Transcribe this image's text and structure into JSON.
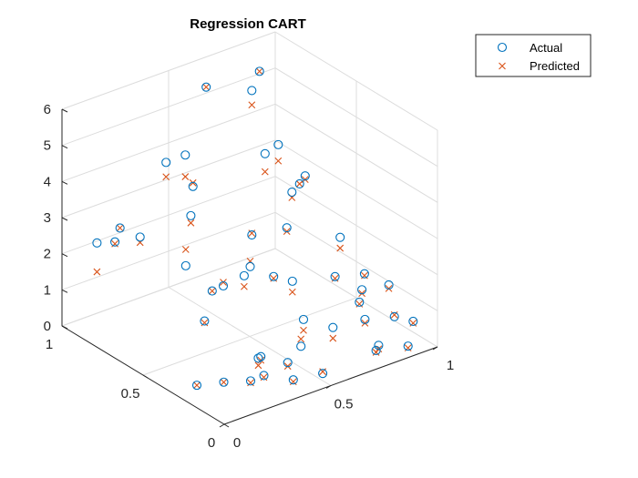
{
  "chart_data": {
    "type": "scatter",
    "title": "Regression CART",
    "projection": "3d",
    "grid": true,
    "legend_position": "top-right",
    "axes": {
      "x": {
        "ticks": [
          0,
          0.5,
          1
        ],
        "labels": [
          "0",
          "0.5",
          "1"
        ],
        "range": [
          0,
          1
        ]
      },
      "y": {
        "ticks": [
          0,
          0.5,
          1
        ],
        "labels": [
          "0",
          "0.5",
          "1"
        ],
        "range": [
          0,
          1
        ]
      },
      "z": {
        "ticks": [
          0,
          1,
          2,
          3,
          4,
          5,
          6
        ],
        "labels": [
          "0",
          "1",
          "2",
          "3",
          "4",
          "5",
          "6"
        ],
        "range": [
          0,
          6
        ]
      }
    },
    "series": [
      {
        "name": "Actual",
        "marker": "circle",
        "color": "#0072BD",
        "points": [
          {
            "x": 0.05,
            "y": 0.85,
            "z": 2.6
          },
          {
            "x": 0.02,
            "y": 0.7,
            "z": 3.1
          },
          {
            "x": 0.1,
            "y": 0.65,
            "z": 3.2
          },
          {
            "x": 0.12,
            "y": 0.8,
            "z": 3.0
          },
          {
            "x": 0.2,
            "y": 0.5,
            "z": 2.6
          },
          {
            "x": 0.35,
            "y": 0.7,
            "z": 4.8
          },
          {
            "x": 0.3,
            "y": 0.6,
            "z": 3.5
          },
          {
            "x": 0.45,
            "y": 0.95,
            "z": 3.7
          },
          {
            "x": 0.5,
            "y": 0.85,
            "z": 3.2
          },
          {
            "x": 0.6,
            "y": 0.9,
            "z": 5.6
          },
          {
            "x": 0.7,
            "y": 0.75,
            "z": 5.7
          },
          {
            "x": 0.85,
            "y": 0.9,
            "z": 5.5
          },
          {
            "x": 0.3,
            "y": 0.4,
            "z": 2.1
          },
          {
            "x": 0.35,
            "y": 0.3,
            "z": 2.8
          },
          {
            "x": 0.4,
            "y": 0.6,
            "z": 1.2
          },
          {
            "x": 0.1,
            "y": 0.3,
            "z": 0.05
          },
          {
            "x": 0.15,
            "y": 0.2,
            "z": 0.3
          },
          {
            "x": 0.2,
            "y": 0.1,
            "z": 0.5
          },
          {
            "x": 0.3,
            "y": 0.15,
            "z": 0.3
          },
          {
            "x": 0.35,
            "y": 0.25,
            "z": 0.4
          },
          {
            "x": 0.4,
            "y": 0.3,
            "z": 0.2
          },
          {
            "x": 0.4,
            "y": 0.1,
            "z": 0.1
          },
          {
            "x": 0.45,
            "y": 0.2,
            "z": 0.2
          },
          {
            "x": 0.5,
            "y": 0.05,
            "z": 0.2
          },
          {
            "x": 0.55,
            "y": 0.25,
            "z": 0.3
          },
          {
            "x": 0.25,
            "y": 0.45,
            "z": 1.1
          },
          {
            "x": 0.55,
            "y": 0.6,
            "z": 1.3
          },
          {
            "x": 0.65,
            "y": 0.55,
            "z": 1.2
          },
          {
            "x": 0.7,
            "y": 0.5,
            "z": 1.1
          },
          {
            "x": 0.6,
            "y": 0.3,
            "z": 0.8
          },
          {
            "x": 0.7,
            "y": 0.25,
            "z": 0.5
          },
          {
            "x": 0.75,
            "y": 0.05,
            "z": 0.3
          },
          {
            "x": 0.7,
            "y": 0.75,
            "z": 1.7
          },
          {
            "x": 0.75,
            "y": 0.6,
            "z": 2.2
          },
          {
            "x": 0.8,
            "y": 0.8,
            "z": 3.6
          },
          {
            "x": 0.85,
            "y": 0.7,
            "z": 2.7
          },
          {
            "x": 0.9,
            "y": 0.85,
            "z": 3.5
          },
          {
            "x": 0.95,
            "y": 0.75,
            "z": 2.8
          },
          {
            "x": 0.9,
            "y": 0.5,
            "z": 0.8
          },
          {
            "x": 0.85,
            "y": 0.25,
            "z": 0.4
          },
          {
            "x": 0.8,
            "y": 0.1,
            "z": 0.2
          },
          {
            "x": 0.9,
            "y": 0.05,
            "z": 0.1
          },
          {
            "x": 0.95,
            "y": 0.2,
            "z": 0.4
          },
          {
            "x": 1.0,
            "y": 0.3,
            "z": 0.9
          },
          {
            "x": 0.95,
            "y": 0.4,
            "z": 0.6
          },
          {
            "x": 1.0,
            "y": 0.15,
            "z": 0.3
          },
          {
            "x": 0.9,
            "y": 0.35,
            "z": 0.5
          },
          {
            "x": 1.0,
            "y": 0.6,
            "z": 1.4
          },
          {
            "x": 1.0,
            "y": 0.45,
            "z": 0.8
          },
          {
            "x": 1.0,
            "y": 0.85,
            "z": 2.2
          }
        ]
      },
      {
        "name": "Predicted",
        "marker": "x",
        "color": "#D95319",
        "points": [
          {
            "x": 0.05,
            "y": 0.85,
            "z": 1.8
          },
          {
            "x": 0.02,
            "y": 0.7,
            "z": 3.05
          },
          {
            "x": 0.1,
            "y": 0.65,
            "z": 3.05
          },
          {
            "x": 0.12,
            "y": 0.8,
            "z": 3.0
          },
          {
            "x": 0.2,
            "y": 0.5,
            "z": 3.05
          },
          {
            "x": 0.35,
            "y": 0.7,
            "z": 4.2
          },
          {
            "x": 0.3,
            "y": 0.6,
            "z": 3.3
          },
          {
            "x": 0.45,
            "y": 0.95,
            "z": 3.3
          },
          {
            "x": 0.5,
            "y": 0.85,
            "z": 3.3
          },
          {
            "x": 0.6,
            "y": 0.9,
            "z": 5.6
          },
          {
            "x": 0.7,
            "y": 0.75,
            "z": 5.3
          },
          {
            "x": 0.85,
            "y": 0.9,
            "z": 5.5
          },
          {
            "x": 0.3,
            "y": 0.4,
            "z": 2.2
          },
          {
            "x": 0.35,
            "y": 0.3,
            "z": 2.95
          },
          {
            "x": 0.4,
            "y": 0.6,
            "z": 1.2
          },
          {
            "x": 0.1,
            "y": 0.3,
            "z": 0.05
          },
          {
            "x": 0.15,
            "y": 0.2,
            "z": 0.3
          },
          {
            "x": 0.2,
            "y": 0.1,
            "z": 0.45
          },
          {
            "x": 0.3,
            "y": 0.15,
            "z": 0.25
          },
          {
            "x": 0.35,
            "y": 0.25,
            "z": 0.2
          },
          {
            "x": 0.4,
            "y": 0.3,
            "z": 0.1
          },
          {
            "x": 0.4,
            "y": 0.1,
            "z": 0.05
          },
          {
            "x": 0.45,
            "y": 0.2,
            "z": 0.1
          },
          {
            "x": 0.5,
            "y": 0.05,
            "z": 0.25
          },
          {
            "x": 0.55,
            "y": 0.25,
            "z": 0.5
          },
          {
            "x": 0.25,
            "y": 0.45,
            "z": 1.05
          },
          {
            "x": 0.55,
            "y": 0.6,
            "z": 1.0
          },
          {
            "x": 0.65,
            "y": 0.55,
            "z": 1.15
          },
          {
            "x": 0.7,
            "y": 0.5,
            "z": 0.8
          },
          {
            "x": 0.6,
            "y": 0.3,
            "z": 0.5
          },
          {
            "x": 0.7,
            "y": 0.25,
            "z": 0.2
          },
          {
            "x": 0.75,
            "y": 0.05,
            "z": 0.25
          },
          {
            "x": 0.7,
            "y": 0.75,
            "z": 1.75
          },
          {
            "x": 0.75,
            "y": 0.6,
            "z": 2.1
          },
          {
            "x": 0.8,
            "y": 0.8,
            "z": 3.1
          },
          {
            "x": 0.85,
            "y": 0.7,
            "z": 2.55
          },
          {
            "x": 0.9,
            "y": 0.85,
            "z": 3.05
          },
          {
            "x": 0.95,
            "y": 0.75,
            "z": 2.7
          },
          {
            "x": 0.9,
            "y": 0.5,
            "z": 0.75
          },
          {
            "x": 0.85,
            "y": 0.25,
            "z": 0.3
          },
          {
            "x": 0.8,
            "y": 0.1,
            "z": 0.1
          },
          {
            "x": 0.9,
            "y": 0.05,
            "z": 0.05
          },
          {
            "x": 0.95,
            "y": 0.2,
            "z": 0.45
          },
          {
            "x": 1.0,
            "y": 0.3,
            "z": 0.8
          },
          {
            "x": 0.95,
            "y": 0.4,
            "z": 0.5
          },
          {
            "x": 1.0,
            "y": 0.15,
            "z": 0.25
          },
          {
            "x": 0.9,
            "y": 0.35,
            "z": 0.45
          },
          {
            "x": 1.0,
            "y": 0.6,
            "z": 1.1
          },
          {
            "x": 1.0,
            "y": 0.45,
            "z": 0.75
          },
          {
            "x": 1.0,
            "y": 0.85,
            "z": 2.2
          }
        ]
      }
    ]
  }
}
